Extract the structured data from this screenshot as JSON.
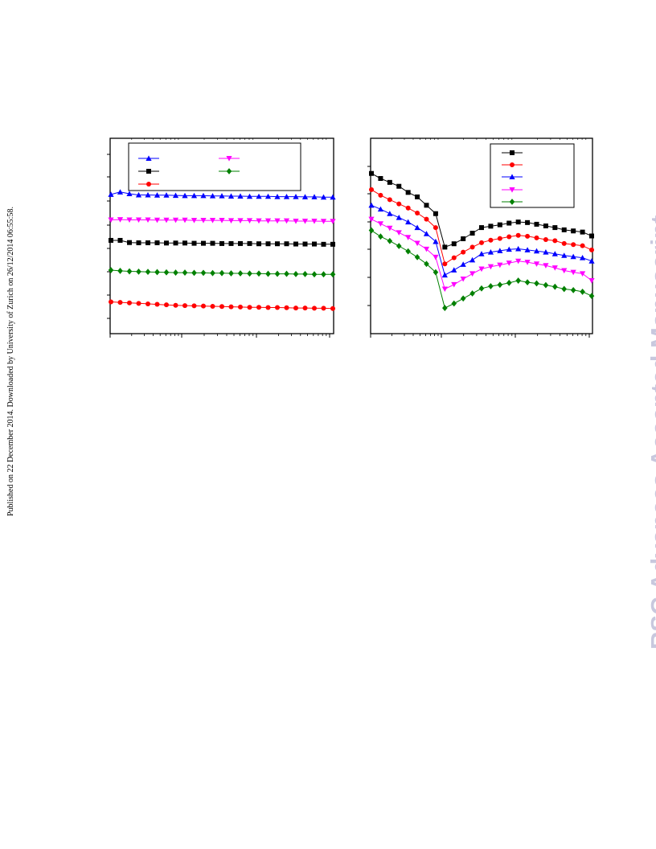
{
  "page": {
    "side_note": "Published on 22 December 2014. Downloaded by University of Zurich on 26/12/2014 06:55:58.",
    "watermark": "RSC Advances Accepted Manuscript"
  },
  "chart_data": [
    {
      "type": "line",
      "grid": false,
      "legend": "top-left",
      "xscale": "log",
      "ylim": [
        0,
        8
      ],
      "series": [
        {
          "color": "#0000ff",
          "marker": "triangle-up",
          "values": [
            5.7,
            5.8,
            5.73,
            5.68,
            5.68,
            5.67,
            5.67,
            5.66,
            5.65,
            5.65,
            5.65,
            5.64,
            5.64,
            5.63,
            5.63,
            5.62,
            5.62,
            5.62,
            5.61,
            5.61,
            5.61,
            5.6,
            5.6,
            5.59,
            5.59
          ]
        },
        {
          "color": "#ff00ff",
          "marker": "triangle-down",
          "values": [
            4.66,
            4.67,
            4.66,
            4.66,
            4.66,
            4.65,
            4.65,
            4.65,
            4.65,
            4.64,
            4.64,
            4.64,
            4.64,
            4.63,
            4.63,
            4.63,
            4.62,
            4.62,
            4.62,
            4.62,
            4.61,
            4.61,
            4.61,
            4.6,
            4.6
          ]
        },
        {
          "color": "#000000",
          "marker": "square",
          "values": [
            3.82,
            3.82,
            3.73,
            3.72,
            3.72,
            3.72,
            3.71,
            3.71,
            3.71,
            3.7,
            3.7,
            3.7,
            3.69,
            3.69,
            3.69,
            3.69,
            3.68,
            3.68,
            3.68,
            3.68,
            3.67,
            3.67,
            3.67,
            3.66,
            3.66
          ]
        },
        {
          "color": "#008000",
          "marker": "diamond",
          "values": [
            2.6,
            2.57,
            2.55,
            2.54,
            2.53,
            2.52,
            2.51,
            2.5,
            2.5,
            2.49,
            2.49,
            2.48,
            2.48,
            2.47,
            2.47,
            2.46,
            2.46,
            2.45,
            2.45,
            2.45,
            2.44,
            2.44,
            2.43,
            2.43,
            2.43
          ]
        },
        {
          "color": "#ff0000",
          "marker": "circle",
          "values": [
            1.3,
            1.28,
            1.26,
            1.24,
            1.22,
            1.2,
            1.18,
            1.16,
            1.15,
            1.14,
            1.13,
            1.12,
            1.11,
            1.1,
            1.09,
            1.08,
            1.08,
            1.07,
            1.07,
            1.06,
            1.05,
            1.05,
            1.04,
            1.04,
            1.03
          ]
        }
      ],
      "legend_entries": [
        {
          "color": "#0000ff",
          "marker": "triangle-up"
        },
        {
          "color": "#ff00ff",
          "marker": "triangle-down"
        },
        {
          "color": "#000000",
          "marker": "square"
        },
        {
          "color": "#008000",
          "marker": "diamond"
        },
        {
          "color": "#ff0000",
          "marker": "circle"
        }
      ]
    },
    {
      "type": "line",
      "grid": false,
      "legend": "top-right",
      "xscale": "log",
      "ylim": [
        0,
        7
      ],
      "series": [
        {
          "color": "#000000",
          "marker": "square",
          "values": [
            5.74,
            5.56,
            5.42,
            5.28,
            5.06,
            4.9,
            4.6,
            4.3,
            3.1,
            3.22,
            3.4,
            3.6,
            3.8,
            3.85,
            3.9,
            3.96,
            4.0,
            3.98,
            3.92,
            3.86,
            3.8,
            3.72,
            3.68,
            3.64,
            3.5
          ]
        },
        {
          "color": "#ff0000",
          "marker": "circle",
          "values": [
            5.16,
            4.96,
            4.8,
            4.65,
            4.5,
            4.32,
            4.1,
            3.8,
            2.5,
            2.72,
            2.92,
            3.1,
            3.26,
            3.35,
            3.41,
            3.47,
            3.52,
            3.49,
            3.43,
            3.37,
            3.33,
            3.23,
            3.19,
            3.15,
            3.0
          ]
        },
        {
          "color": "#0000ff",
          "marker": "triangle-up",
          "values": [
            4.6,
            4.46,
            4.3,
            4.16,
            4.0,
            3.8,
            3.58,
            3.3,
            2.1,
            2.28,
            2.48,
            2.64,
            2.86,
            2.92,
            2.97,
            3.02,
            3.04,
            3.0,
            2.96,
            2.92,
            2.86,
            2.8,
            2.76,
            2.72,
            2.6
          ]
        },
        {
          "color": "#ff00ff",
          "marker": "triangle-down",
          "values": [
            4.1,
            3.94,
            3.78,
            3.62,
            3.45,
            3.24,
            3.03,
            2.74,
            1.6,
            1.76,
            1.96,
            2.15,
            2.32,
            2.4,
            2.46,
            2.53,
            2.6,
            2.56,
            2.5,
            2.44,
            2.36,
            2.26,
            2.2,
            2.15,
            1.9
          ]
        },
        {
          "color": "#008000",
          "marker": "diamond",
          "values": [
            3.7,
            3.48,
            3.32,
            3.14,
            2.95,
            2.74,
            2.5,
            2.2,
            0.92,
            1.08,
            1.26,
            1.44,
            1.62,
            1.7,
            1.75,
            1.82,
            1.9,
            1.84,
            1.8,
            1.74,
            1.68,
            1.6,
            1.56,
            1.5,
            1.35
          ]
        }
      ],
      "legend_entries": [
        {
          "color": "#000000",
          "marker": "square"
        },
        {
          "color": "#ff0000",
          "marker": "circle"
        },
        {
          "color": "#0000ff",
          "marker": "triangle-up"
        },
        {
          "color": "#ff00ff",
          "marker": "triangle-down"
        },
        {
          "color": "#008000",
          "marker": "diamond"
        }
      ]
    }
  ]
}
